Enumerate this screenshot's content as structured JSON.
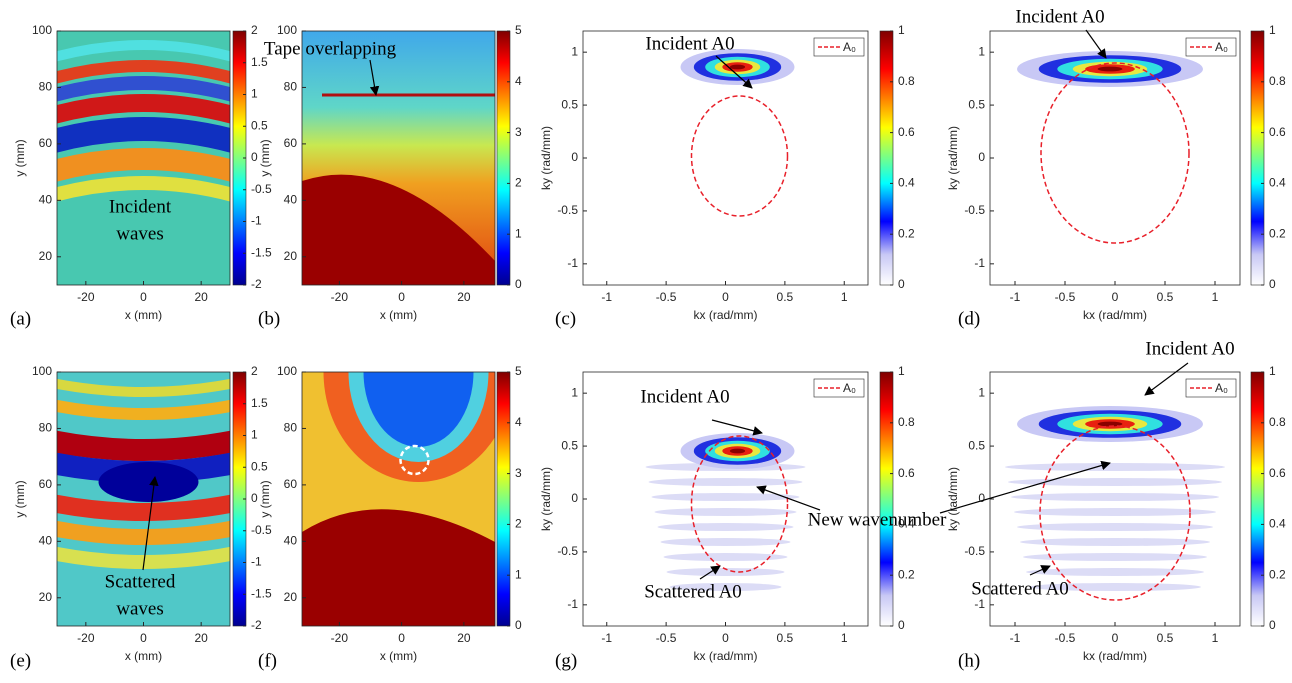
{
  "panels": [
    {
      "label": "(a)",
      "xlabel": "x (mm)",
      "ylabel": "y (mm)",
      "xlim": [
        -30,
        30
      ],
      "ylim": [
        10,
        100
      ],
      "xticks": [
        -20,
        0,
        20
      ],
      "yticks": [
        20,
        40,
        60,
        80,
        100
      ],
      "clim": [
        -2,
        2
      ],
      "cticks": [
        -2,
        -1.5,
        -1,
        -0.5,
        0,
        0.5,
        1,
        1.5,
        2
      ],
      "annotations": [
        {
          "lines": [
            "Incident",
            "waves"
          ]
        }
      ]
    },
    {
      "label": "(b)",
      "xlabel": "x (mm)",
      "ylabel": "y (mm)",
      "xlim": [
        -32,
        30
      ],
      "ylim": [
        10,
        100
      ],
      "xticks": [
        -20,
        0,
        20
      ],
      "yticks": [
        20,
        40,
        60,
        80,
        100
      ],
      "clim": [
        0,
        5
      ],
      "cticks": [
        0,
        1,
        2,
        3,
        4,
        5
      ],
      "annotations": [
        {
          "lines": [
            "Tape overlapping"
          ]
        }
      ]
    },
    {
      "label": "(c)",
      "xlabel": "kx (rad/mm)",
      "ylabel": "ky (rad/mm)",
      "xlim": [
        -1.2,
        1.2
      ],
      "ylim": [
        -1.2,
        1.2
      ],
      "xticks": [
        -1,
        -0.5,
        0,
        0.5,
        1
      ],
      "yticks": [
        -1,
        -0.5,
        0,
        0.5,
        1
      ],
      "clim": [
        0,
        1
      ],
      "cticks": [
        0,
        0.2,
        0.4,
        0.6,
        0.8,
        1
      ],
      "legend": "A₀",
      "annotations": [
        {
          "lines": [
            "Incident A0"
          ]
        }
      ]
    },
    {
      "label": "(d)",
      "xlabel": "kx (rad/mm)",
      "ylabel": "ky (rad/mm)",
      "xlim": [
        -1.25,
        1.25
      ],
      "ylim": [
        -1.2,
        1.2
      ],
      "xticks": [
        -1,
        -0.5,
        0,
        0.5,
        1
      ],
      "yticks": [
        -1,
        -0.5,
        0,
        0.5,
        1
      ],
      "clim": [
        0,
        1
      ],
      "cticks": [
        0,
        0.2,
        0.4,
        0.6,
        0.8,
        1
      ],
      "legend": "A₀",
      "annotations": [
        {
          "lines": [
            "Incident A0"
          ]
        }
      ]
    },
    {
      "label": "(e)",
      "xlabel": "x (mm)",
      "ylabel": "y (mm)",
      "xlim": [
        -30,
        30
      ],
      "ylim": [
        10,
        100
      ],
      "xticks": [
        -20,
        0,
        20
      ],
      "yticks": [
        20,
        40,
        60,
        80,
        100
      ],
      "clim": [
        -2,
        2
      ],
      "cticks": [
        -2,
        -1.5,
        -1,
        -0.5,
        0,
        0.5,
        1,
        1.5,
        2
      ],
      "annotations": [
        {
          "lines": [
            "Scattered",
            "waves"
          ]
        }
      ]
    },
    {
      "label": "(f)",
      "xlabel": "x (mm)",
      "ylabel": "y (mm)",
      "xlim": [
        -32,
        30
      ],
      "ylim": [
        10,
        100
      ],
      "xticks": [
        -20,
        0,
        20
      ],
      "yticks": [
        20,
        40,
        60,
        80,
        100
      ],
      "clim": [
        0,
        5
      ],
      "cticks": [
        0,
        1,
        2,
        3,
        4,
        5
      ],
      "annotations": []
    },
    {
      "label": "(g)",
      "xlabel": "kx (rad/mm)",
      "ylabel": "ky (rad/mm)",
      "xlim": [
        -1.2,
        1.2
      ],
      "ylim": [
        -1.2,
        1.2
      ],
      "xticks": [
        -1,
        -0.5,
        0,
        0.5,
        1
      ],
      "yticks": [
        -1,
        -0.5,
        0,
        0.5,
        1
      ],
      "clim": [
        0,
        1
      ],
      "cticks": [
        0,
        0.2,
        0.4,
        0.6,
        0.8,
        1
      ],
      "legend": "A₀",
      "annotations": [
        {
          "lines": [
            "Incident A0"
          ]
        },
        {
          "lines": [
            "Scattered A0"
          ]
        }
      ]
    },
    {
      "label": "(h)",
      "xlabel": "kx (rad/mm)",
      "ylabel": "ky (rad/mm)",
      "xlim": [
        -1.25,
        1.25
      ],
      "ylim": [
        -1.2,
        1.2
      ],
      "xticks": [
        -1,
        -0.5,
        0,
        0.5,
        1
      ],
      "yticks": [
        -1,
        -0.5,
        0,
        0.5,
        1
      ],
      "clim": [
        0,
        1
      ],
      "cticks": [
        0,
        0.2,
        0.4,
        0.6,
        0.8,
        1
      ],
      "legend": "A₀",
      "annotations": [
        {
          "lines": [
            "Incident A0"
          ]
        },
        {
          "lines": [
            "Scattered A0"
          ]
        }
      ]
    }
  ],
  "annotations": [
    {
      "lines": [
        "New wavenumber"
      ]
    }
  ]
}
